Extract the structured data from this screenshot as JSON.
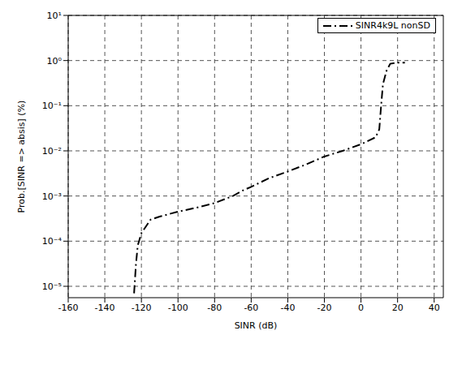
{
  "chart_data": {
    "type": "line",
    "x_label": "SINR (dB)",
    "y_label": "Prob.[SINR => absis] (%)",
    "xlim": [
      -160,
      45
    ],
    "ylim": [
      5.6e-06,
      10
    ],
    "xticks": [
      -160,
      -140,
      -120,
      -100,
      -80,
      -60,
      -40,
      -20,
      0,
      20,
      40
    ],
    "yticks": [
      {
        "value": 1e-05,
        "label": "10⁻⁵"
      },
      {
        "value": 0.0001,
        "label": "10⁻⁴"
      },
      {
        "value": 0.001,
        "label": "10⁻³"
      },
      {
        "value": 0.01,
        "label": "10⁻²"
      },
      {
        "value": 0.1,
        "label": "10⁻¹"
      },
      {
        "value": 1,
        "label": "10⁰"
      },
      {
        "value": 10,
        "label": "10¹"
      }
    ],
    "log": "y",
    "grid": true,
    "legend": "upper right",
    "x": [
      -124,
      -123,
      -122,
      -120,
      -115,
      -110,
      -100,
      -90,
      -80,
      -70,
      -65,
      -60,
      -50,
      -40,
      -30,
      -20,
      -10,
      0,
      8,
      10,
      11,
      12,
      14,
      16,
      20,
      24
    ],
    "series": [
      {
        "name": "SINR4k9L nonSD",
        "color": "#000000",
        "line_style": "dashdot",
        "values": [
          7e-06,
          3e-05,
          8e-05,
          0.00015,
          0.0003,
          0.00035,
          0.00045,
          0.00055,
          0.0007,
          0.001,
          0.0013,
          0.0016,
          0.0025,
          0.0035,
          0.005,
          0.0075,
          0.01,
          0.014,
          0.02,
          0.03,
          0.1,
          0.3,
          0.6,
          0.85,
          0.9,
          0.9
        ]
      }
    ]
  }
}
